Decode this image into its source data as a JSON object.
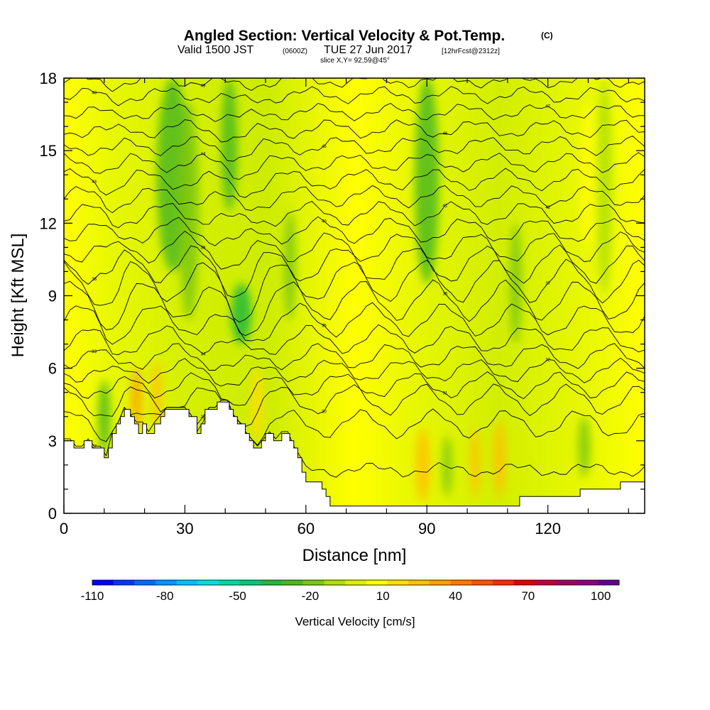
{
  "header": {
    "title": "Angled Section: Vertical Velocity & Pot.Temp.",
    "title_mark": "(C)",
    "valid_prefix": "Valid 1500 JST",
    "valid_utc": "(0600Z)",
    "valid_date": "TUE 27 Jun 2017",
    "forecast": "[12hrFcst@2312z]",
    "slice": "slice X,Y= 92,59@45°"
  },
  "chart_data": {
    "type": "heatmap",
    "xlabel": "Distance [nm]",
    "ylabel": "Height [Kft MSL]",
    "xlim": [
      0,
      144
    ],
    "ylim": [
      0,
      18
    ],
    "x_ticks": [
      0,
      30,
      60,
      90,
      120
    ],
    "y_ticks": [
      0,
      3,
      6,
      9,
      12,
      15,
      18
    ],
    "terrain": [
      [
        0,
        3.0
      ],
      [
        2.5,
        3.0
      ],
      [
        2.5,
        2.7
      ],
      [
        5,
        2.7
      ],
      [
        5,
        3.0
      ],
      [
        7,
        3.0
      ],
      [
        7,
        2.7
      ],
      [
        10,
        2.7
      ],
      [
        10,
        2.3
      ],
      [
        11,
        2.3
      ],
      [
        11,
        2.7
      ],
      [
        12,
        2.7
      ],
      [
        12,
        3.3
      ],
      [
        13,
        3.3
      ],
      [
        13,
        3.7
      ],
      [
        14,
        3.7
      ],
      [
        14,
        4.0
      ],
      [
        15,
        4.0
      ],
      [
        15,
        4.3
      ],
      [
        16.5,
        4.3
      ],
      [
        16.5,
        4.0
      ],
      [
        17.5,
        4.0
      ],
      [
        17.5,
        3.7
      ],
      [
        18.5,
        3.7
      ],
      [
        18.5,
        3.3
      ],
      [
        19.5,
        3.3
      ],
      [
        19.5,
        3.7
      ],
      [
        20.5,
        3.7
      ],
      [
        20.5,
        3.3
      ],
      [
        22.5,
        3.3
      ],
      [
        22.5,
        3.7
      ],
      [
        24,
        3.7
      ],
      [
        24,
        4.0
      ],
      [
        25,
        4.0
      ],
      [
        25,
        4.3
      ],
      [
        31,
        4.3
      ],
      [
        31,
        4.0
      ],
      [
        33,
        4.0
      ],
      [
        33,
        3.3
      ],
      [
        34,
        3.3
      ],
      [
        34,
        3.7
      ],
      [
        35,
        3.7
      ],
      [
        35,
        4.3
      ],
      [
        38,
        4.3
      ],
      [
        38,
        4.6
      ],
      [
        41,
        4.6
      ],
      [
        41,
        4.3
      ],
      [
        42,
        4.3
      ],
      [
        42,
        4.0
      ],
      [
        43,
        4.0
      ],
      [
        43,
        3.7
      ],
      [
        45,
        3.7
      ],
      [
        45,
        3.3
      ],
      [
        46,
        3.3
      ],
      [
        46,
        3.0
      ],
      [
        47,
        3.0
      ],
      [
        47,
        2.7
      ],
      [
        49,
        2.7
      ],
      [
        49,
        3.0
      ],
      [
        50,
        3.0
      ],
      [
        50,
        3.3
      ],
      [
        52,
        3.3
      ],
      [
        52,
        3.0
      ],
      [
        54,
        3.0
      ],
      [
        54,
        3.3
      ],
      [
        56,
        3.3
      ],
      [
        56,
        3.0
      ],
      [
        57,
        3.0
      ],
      [
        57,
        2.7
      ],
      [
        58,
        2.7
      ],
      [
        58,
        2.3
      ],
      [
        59,
        2.3
      ],
      [
        59,
        1.7
      ],
      [
        60,
        1.7
      ],
      [
        60,
        1.3
      ],
      [
        64,
        1.3
      ],
      [
        64,
        1.0
      ],
      [
        65,
        1.0
      ],
      [
        65,
        0.7
      ],
      [
        66,
        0.7
      ],
      [
        66,
        0.3
      ],
      [
        85,
        0.3
      ],
      [
        113,
        0.3
      ],
      [
        113,
        0.7
      ],
      [
        128,
        0.7
      ],
      [
        128,
        1.0
      ],
      [
        138,
        1.0
      ],
      [
        138,
        1.3
      ],
      [
        144,
        1.3
      ]
    ],
    "isentropes": [
      {
        "label": "27",
        "base": 1.8,
        "dip": 0.2
      },
      {
        "label": "28",
        "base": 3.7,
        "dip": 0.5
      },
      {
        "label": "30",
        "base": 4.7,
        "dip": 0.55
      },
      {
        "label": "31",
        "base": 5.3,
        "dip": 0.45
      },
      {
        "label": "32",
        "base": 5.9,
        "dip": 0.4
      },
      {
        "label": "33",
        "base": 6.5,
        "dip": 0.45
      },
      {
        "label": "34",
        "base": 7.2,
        "dip": 0.5
      },
      {
        "label": "35",
        "base": 8.0,
        "dip": 0.6
      },
      {
        "label": "36",
        "base": 8.8,
        "dip": 0.75
      },
      {
        "label": "37",
        "base": 9.6,
        "dip": 0.8
      },
      {
        "label": "38",
        "base": 10.3,
        "dip": 0.7
      },
      {
        "label": "39",
        "base": 11.0,
        "dip": 0.55
      },
      {
        "label": "40",
        "base": 11.7,
        "dip": 0.45
      },
      {
        "label": "41",
        "base": 12.4,
        "dip": 0.4
      },
      {
        "label": "42",
        "base": 13.1,
        "dip": 0.35
      },
      {
        "label": "43",
        "base": 13.8,
        "dip": 0.35
      },
      {
        "label": "44",
        "base": 14.5,
        "dip": 0.3
      },
      {
        "label": "45",
        "base": 15.2,
        "dip": 0.3
      },
      {
        "label": "46",
        "base": 15.9,
        "dip": 0.3
      },
      {
        "label": "47",
        "base": 16.6,
        "dip": 0.25
      },
      {
        "label": "48",
        "base": 17.3,
        "dip": 0.25
      },
      {
        "label": "49",
        "base": 17.9,
        "dip": 0.2
      }
    ],
    "velocity_bands": [
      {
        "x": 10,
        "y0": 2.5,
        "y1": 5.5,
        "w": 1.5,
        "v": -30
      },
      {
        "x": 18,
        "y0": 3.5,
        "y1": 6.0,
        "w": 1.2,
        "v": 40
      },
      {
        "x": 23,
        "y0": 3.6,
        "y1": 6.3,
        "w": 1.2,
        "v": 30
      },
      {
        "x": 27,
        "y0": 10.0,
        "y1": 18.0,
        "w": 4,
        "v": -30
      },
      {
        "x": 31,
        "y0": 8.0,
        "y1": 17.0,
        "w": 2.5,
        "v": -20
      },
      {
        "x": 41,
        "y0": 12.5,
        "y1": 18.0,
        "w": 2,
        "v": -35
      },
      {
        "x": 44,
        "y0": 7.0,
        "y1": 9.5,
        "w": 2.5,
        "v": -40
      },
      {
        "x": 48,
        "y0": 3.0,
        "y1": 6.0,
        "w": 1.5,
        "v": 20
      },
      {
        "x": 56,
        "y0": 8.0,
        "y1": 12.5,
        "w": 1.5,
        "v": -20
      },
      {
        "x": 73,
        "y0": 10.0,
        "y1": 18.0,
        "w": 2,
        "v": 10
      },
      {
        "x": 89,
        "y0": 0.5,
        "y1": 3.5,
        "w": 1.8,
        "v": 30
      },
      {
        "x": 90,
        "y0": 9.5,
        "y1": 18.0,
        "w": 3,
        "v": -30
      },
      {
        "x": 95,
        "y0": 0.7,
        "y1": 3.2,
        "w": 1.2,
        "v": -20
      },
      {
        "x": 102,
        "y0": 0.7,
        "y1": 3.5,
        "w": 1.2,
        "v": 30
      },
      {
        "x": 108,
        "y0": 0.7,
        "y1": 3.8,
        "w": 1.5,
        "v": 30
      },
      {
        "x": 112,
        "y0": 7.0,
        "y1": 12.0,
        "w": 1.5,
        "v": -20
      },
      {
        "x": 129,
        "y0": 1.5,
        "y1": 4.0,
        "w": 1.5,
        "v": -20
      },
      {
        "x": 130,
        "y0": 11.0,
        "y1": 17.0,
        "w": 2,
        "v": 10
      },
      {
        "x": 134,
        "y0": 9.0,
        "y1": 18.0,
        "w": 2,
        "v": -10
      }
    ],
    "colorbar": {
      "label": "Vertical Velocity [cm/s]",
      "tick_labels": [
        "-110",
        "-80",
        "-50",
        "-20",
        "10",
        "40",
        "70",
        "100"
      ],
      "colors": [
        "#0000ff",
        "#0035ff",
        "#006aff",
        "#0095ff",
        "#00c0ff",
        "#00dede",
        "#00d8a0",
        "#00c878",
        "#22b83c",
        "#4cb81c",
        "#7cc80c",
        "#b0e000",
        "#dcf000",
        "#ffff00",
        "#ffde00",
        "#ffc200",
        "#ffa000",
        "#ff7a00",
        "#ff5200",
        "#ff2800",
        "#e00000",
        "#c0003a",
        "#a00060",
        "#8a0080",
        "#600090"
      ]
    }
  }
}
